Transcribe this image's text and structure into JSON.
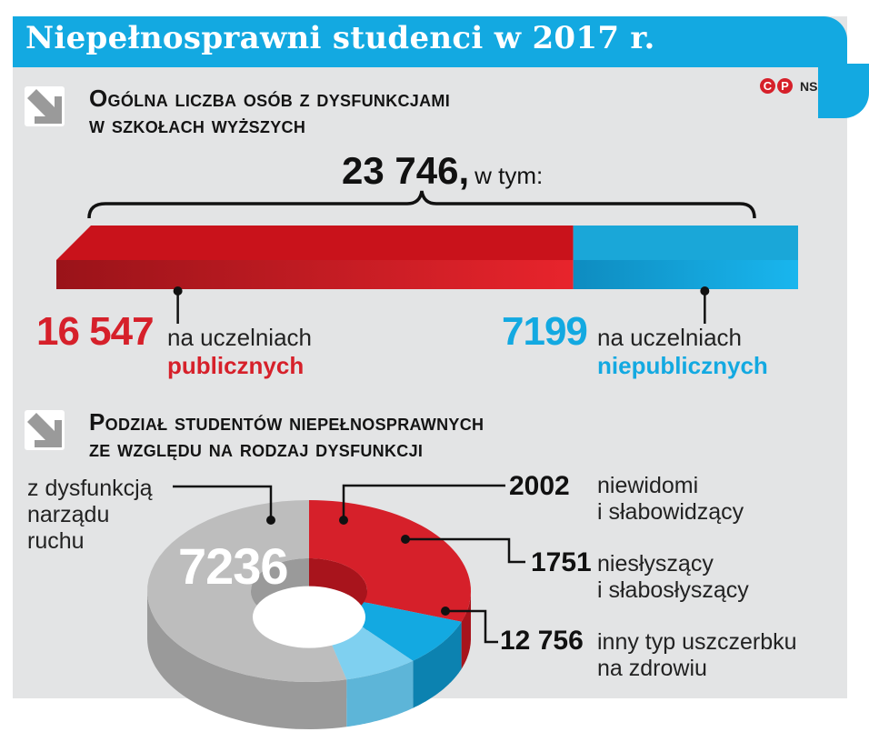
{
  "header": {
    "title": "Niepełnosprawni studenci w 2017 r.",
    "credit": [
      "C",
      "P"
    ],
    "credit_suffix": "NS",
    "accent_color": "#13a9e1"
  },
  "section1": {
    "heading_line1": "Ogólna liczba osób z dysfunkcjami",
    "heading_line2": "w szkołach wyższych",
    "total_value": "23 746,",
    "total_suffix": "w tym:"
  },
  "section2": {
    "heading_line1": "Podział studentów niepełnosprawnych",
    "heading_line2": "ze względu na rodzaj dysfunkcji"
  },
  "chart_data": [
    {
      "type": "bar",
      "stacked": true,
      "total": 23746,
      "series": [
        {
          "name": "publicznych",
          "value": 16547,
          "value_label": "16 547",
          "text": "na uczelniach",
          "color": "#d6202a"
        },
        {
          "name": "niepublicznych",
          "value": 7199,
          "value_label": "7199",
          "text": "na uczelniach",
          "color": "#13a9e1"
        }
      ]
    },
    {
      "type": "pie",
      "style": "3d-donut",
      "slices": [
        {
          "label_line1": "z dysfunkcją",
          "label_line2": "narządu",
          "label_line3": "ruchu",
          "value": 7236,
          "value_label": "7236",
          "color": "#d6202a"
        },
        {
          "label_line1": "niewidomi",
          "label_line2": "i słabowidzący",
          "value": 2002,
          "value_label": "2002",
          "color": "#13a9e1"
        },
        {
          "label_line1": "niesłyszący",
          "label_line2": "i słabosłyszący",
          "value": 1751,
          "value_label": "1751",
          "color": "#7fd0f0"
        },
        {
          "label_line1": "inny typ uszczerbku",
          "label_line2": "na zdrowiu",
          "value": 12756,
          "value_label": "12 756",
          "color": "#bdbdbd"
        }
      ]
    }
  ]
}
